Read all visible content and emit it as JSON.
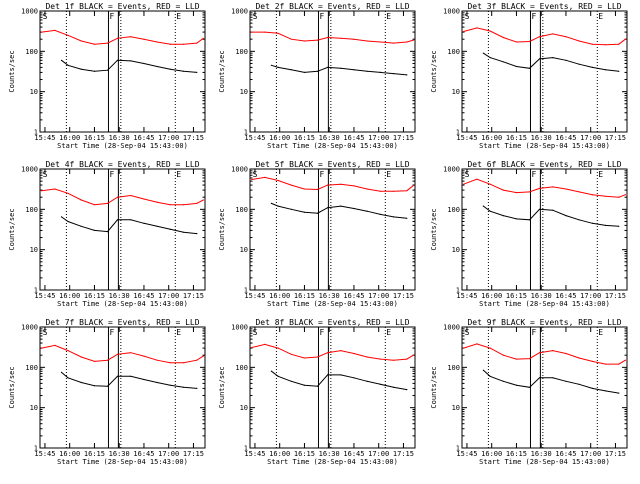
{
  "chart_data": {
    "type": "line",
    "layout": "3x3 grid",
    "common": {
      "xlabel": "Start Time (28-Sep-04 15:43:00)",
      "ylabel": "Counts/sec",
      "y_scale": "log",
      "ylim": [
        1,
        1000
      ],
      "y_tick_labels": [
        "1",
        "10",
        "100",
        "1000"
      ],
      "x_range_minutes": [
        -1,
        99
      ],
      "x_tick_labels": [
        "15:45",
        "16:00",
        "16:15",
        "16:30",
        "16:45",
        "17:00",
        "17:15"
      ],
      "x_tick_minutes": [
        2,
        17,
        32,
        47,
        62,
        77,
        92
      ],
      "vertical_solid_lines_minutes": [
        40.5,
        46.5
      ],
      "vertical_dotted_lines_minutes": [
        15,
        48,
        81
      ],
      "markers": [
        {
          "label": "S",
          "minute": 0
        },
        {
          "label": "F",
          "minute": 40.5
        },
        {
          "label": "E",
          "minute": 81
        }
      ],
      "series_colors": {
        "Events": "#000000",
        "LLD": "#ff0000"
      }
    },
    "panels": [
      {
        "title": "Det 1f BLACK = Events, RED = LLD",
        "series": [
          {
            "name": "LLD",
            "color": "#ff0000",
            "x": [
              0,
              8,
              16,
              24,
              32,
              40,
              46,
              54,
              62,
              70,
              78,
              86,
              94,
              98
            ],
            "y": [
              300,
              330,
              250,
              180,
              150,
              160,
              210,
              230,
              200,
              170,
              150,
              150,
              160,
              210
            ]
          },
          {
            "name": "Events",
            "color": "#000000",
            "x": [
              12,
              16,
              24,
              32,
              40,
              46,
              54,
              62,
              70,
              78,
              86,
              94
            ],
            "y": [
              60,
              45,
              36,
              32,
              34,
              60,
              58,
              50,
              42,
              36,
              32,
              30
            ]
          }
        ]
      },
      {
        "title": "Det 2f BLACK = Events, RED = LLD",
        "series": [
          {
            "name": "LLD",
            "color": "#ff0000",
            "x": [
              0,
              8,
              16,
              24,
              32,
              40,
              46,
              54,
              62,
              70,
              78,
              86,
              94,
              98
            ],
            "y": [
              300,
              300,
              280,
              200,
              180,
              190,
              220,
              210,
              200,
              180,
              170,
              160,
              170,
              190
            ]
          },
          {
            "name": "Events",
            "color": "#000000",
            "x": [
              12,
              16,
              24,
              32,
              40,
              46,
              54,
              62,
              70,
              78,
              86,
              94
            ],
            "y": [
              45,
              40,
              35,
              30,
              32,
              40,
              38,
              35,
              32,
              30,
              28,
              26
            ]
          }
        ]
      },
      {
        "title": "Det 3f BLACK = Events, RED = LLD",
        "series": [
          {
            "name": "LLD",
            "color": "#ff0000",
            "x": [
              0,
              8,
              16,
              24,
              32,
              40,
              46,
              54,
              62,
              70,
              78,
              86,
              94,
              98
            ],
            "y": [
              310,
              380,
              320,
              220,
              170,
              175,
              230,
              270,
              230,
              180,
              150,
              145,
              150,
              200
            ]
          },
          {
            "name": "Events",
            "color": "#000000",
            "x": [
              12,
              16,
              24,
              32,
              40,
              46,
              54,
              62,
              70,
              78,
              86,
              94
            ],
            "y": [
              90,
              70,
              55,
              42,
              38,
              65,
              70,
              60,
              48,
              40,
              35,
              32
            ]
          }
        ]
      },
      {
        "title": "Det 4f BLACK = Events, RED = LLD",
        "series": [
          {
            "name": "LLD",
            "color": "#ff0000",
            "x": [
              0,
              8,
              16,
              24,
              32,
              40,
              46,
              54,
              62,
              70,
              78,
              86,
              94,
              98
            ],
            "y": [
              290,
              320,
              250,
              170,
              130,
              140,
              200,
              220,
              180,
              150,
              130,
              130,
              140,
              170
            ]
          },
          {
            "name": "Events",
            "color": "#000000",
            "x": [
              12,
              16,
              24,
              32,
              40,
              46,
              54,
              62,
              70,
              78,
              86,
              94
            ],
            "y": [
              65,
              50,
              38,
              30,
              28,
              55,
              55,
              45,
              38,
              32,
              27,
              25
            ]
          }
        ]
      },
      {
        "title": "Det 5f BLACK = Events, RED = LLD",
        "series": [
          {
            "name": "LLD",
            "color": "#ff0000",
            "x": [
              0,
              8,
              16,
              24,
              32,
              40,
              46,
              54,
              62,
              70,
              78,
              86,
              94,
              98
            ],
            "y": [
              550,
              620,
              520,
              400,
              320,
              310,
              400,
              420,
              380,
              320,
              280,
              280,
              290,
              390
            ]
          },
          {
            "name": "Events",
            "color": "#000000",
            "x": [
              12,
              16,
              24,
              32,
              40,
              46,
              54,
              62,
              70,
              78,
              86,
              94
            ],
            "y": [
              140,
              120,
              100,
              85,
              80,
              110,
              120,
              105,
              90,
              75,
              65,
              60
            ]
          }
        ]
      },
      {
        "title": "Det 6f BLACK = Events, RED = LLD",
        "series": [
          {
            "name": "LLD",
            "color": "#ff0000",
            "x": [
              0,
              8,
              16,
              24,
              32,
              40,
              46,
              54,
              62,
              70,
              78,
              86,
              94,
              98
            ],
            "y": [
              420,
              560,
              420,
              300,
              260,
              270,
              330,
              360,
              320,
              270,
              230,
              210,
              200,
              230
            ]
          },
          {
            "name": "Events",
            "color": "#000000",
            "x": [
              12,
              16,
              24,
              32,
              40,
              46,
              54,
              62,
              70,
              78,
              86,
              94
            ],
            "y": [
              120,
              90,
              70,
              58,
              55,
              100,
              95,
              70,
              55,
              45,
              40,
              38
            ]
          }
        ]
      },
      {
        "title": "Det 7f BLACK = Events, RED = LLD",
        "series": [
          {
            "name": "LLD",
            "color": "#ff0000",
            "x": [
              0,
              8,
              16,
              24,
              32,
              40,
              46,
              54,
              62,
              70,
              78,
              86,
              94,
              98
            ],
            "y": [
              300,
              350,
              260,
              180,
              140,
              150,
              210,
              230,
              190,
              150,
              130,
              130,
              150,
              190
            ]
          },
          {
            "name": "Events",
            "color": "#000000",
            "x": [
              12,
              16,
              24,
              32,
              40,
              46,
              54,
              62,
              70,
              78,
              86,
              94
            ],
            "y": [
              75,
              55,
              42,
              35,
              34,
              60,
              60,
              50,
              42,
              36,
              32,
              30
            ]
          }
        ]
      },
      {
        "title": "Det 8f BLACK = Events, RED = LLD",
        "series": [
          {
            "name": "LLD",
            "color": "#ff0000",
            "x": [
              0,
              8,
              16,
              24,
              32,
              40,
              46,
              54,
              62,
              70,
              78,
              86,
              94,
              98
            ],
            "y": [
              310,
              370,
              300,
              210,
              170,
              180,
              230,
              260,
              220,
              180,
              160,
              150,
              160,
              200
            ]
          },
          {
            "name": "Events",
            "color": "#000000",
            "x": [
              12,
              16,
              24,
              32,
              40,
              46,
              54,
              62,
              70,
              78,
              86,
              94
            ],
            "y": [
              80,
              60,
              45,
              36,
              34,
              65,
              65,
              55,
              45,
              38,
              32,
              28
            ]
          }
        ]
      },
      {
        "title": "Det 9f BLACK = Events, RED = LLD",
        "series": [
          {
            "name": "LLD",
            "color": "#ff0000",
            "x": [
              0,
              8,
              16,
              24,
              32,
              40,
              46,
              54,
              62,
              70,
              78,
              86,
              94,
              98
            ],
            "y": [
              300,
              380,
              300,
              200,
              160,
              165,
              230,
              260,
              220,
              170,
              140,
              120,
              120,
              150
            ]
          },
          {
            "name": "Events",
            "color": "#000000",
            "x": [
              12,
              16,
              24,
              32,
              40,
              46,
              54,
              62,
              70,
              78,
              86,
              94
            ],
            "y": [
              85,
              60,
              45,
              36,
              32,
              55,
              55,
              45,
              38,
              30,
              26,
              23
            ]
          }
        ]
      }
    ]
  }
}
